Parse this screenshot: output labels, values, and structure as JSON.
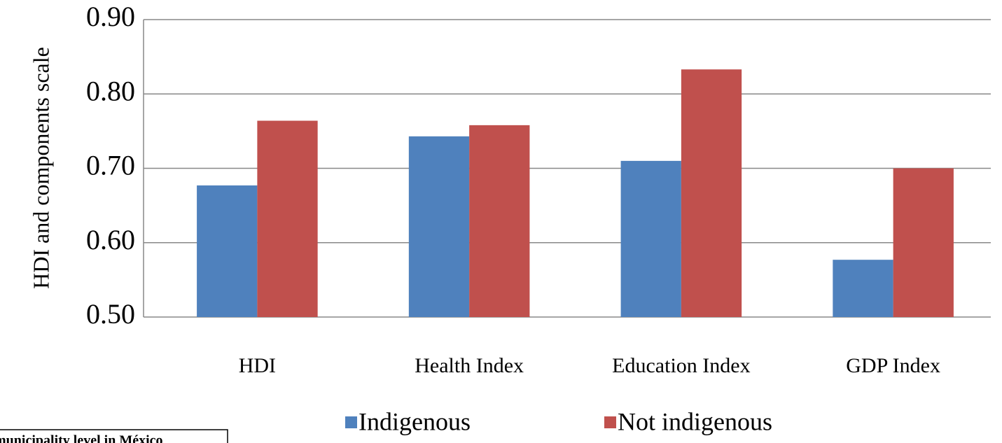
{
  "chart_data": {
    "type": "bar",
    "y_label": "HDI and components scale",
    "categories": [
      "HDI",
      "Health Index",
      "Education Index",
      "GDP Index"
    ],
    "series": [
      {
        "name": "Indigenous",
        "color": "#4f81bd",
        "values": [
          0.677,
          0.743,
          0.71,
          0.577
        ]
      },
      {
        "name": "Not indigenous",
        "color": "#c0504d",
        "values": [
          0.764,
          0.758,
          0.833,
          0.7
        ]
      }
    ],
    "ylim": [
      0.5,
      0.9
    ],
    "yticks": [
      {
        "value": 0.5,
        "label": "0.50"
      },
      {
        "value": 0.6,
        "label": "0.60"
      },
      {
        "value": 0.7,
        "label": "0.70"
      },
      {
        "value": 0.8,
        "label": "0.80"
      },
      {
        "value": 0.9,
        "label": "0.90"
      }
    ],
    "grid": true,
    "legend": "bottom",
    "annotation": "municipality level in México"
  }
}
